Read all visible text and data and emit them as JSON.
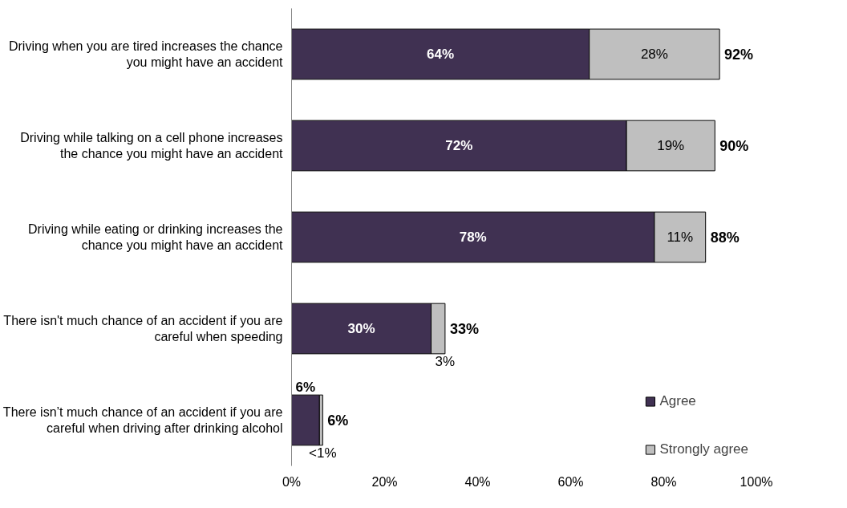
{
  "chart_data": {
    "type": "bar",
    "orientation": "horizontal",
    "stacked": true,
    "categories": [
      "Driving when you are tired increases the chance you might have an accident",
      "Driving while talking on a cell phone increases the chance you might have an accident",
      "Driving while eating or drinking increases the chance you might have an accident",
      "There isn't much chance of an accident if you are careful when speeding",
      "There isn’t much chance of an accident if you are careful when driving after drinking alcohol"
    ],
    "series": [
      {
        "name": "Agree",
        "color": "#403152",
        "values": [
          64,
          72,
          78,
          30,
          6
        ],
        "value_labels": [
          "64%",
          "72%",
          "78%",
          "30%",
          "6%"
        ]
      },
      {
        "name": "Strongly agree",
        "color": "#bfbfbf",
        "values": [
          28,
          19,
          11,
          3,
          0.7
        ],
        "value_labels": [
          "28%",
          "19%",
          "11%",
          "3%",
          "<1%"
        ]
      }
    ],
    "totals": [
      "92%",
      "90%",
      "88%",
      "33%",
      "6%"
    ],
    "xlim": [
      0,
      100
    ],
    "xticks": [
      {
        "value": 0,
        "label": "0%"
      },
      {
        "value": 20,
        "label": "20%"
      },
      {
        "value": 40,
        "label": "40%"
      },
      {
        "value": 60,
        "label": "60%"
      },
      {
        "value": 80,
        "label": "80%"
      },
      {
        "value": 100,
        "label": "100%"
      }
    ],
    "grid": false,
    "legend": "bottom right"
  }
}
